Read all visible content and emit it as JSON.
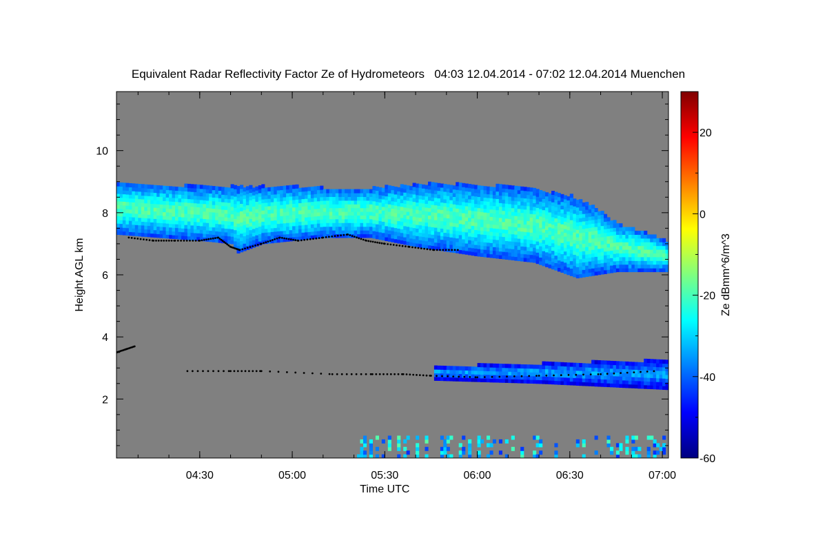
{
  "chart_data": {
    "type": "heatmap",
    "title": "Equivalent Radar Reflectivity Factor Ze of Hydrometeors   04:03 12.04.2014 - 07:02 12.04.2014 Muenchen",
    "xlabel": "Time UTC",
    "ylabel": "Height AGL km",
    "colorbar_label": "Ze dBmm^6/m^3",
    "x_ticks": [
      "04:30",
      "05:00",
      "05:30",
      "06:00",
      "06:30",
      "07:00"
    ],
    "x_tick_values_min": [
      270,
      300,
      330,
      360,
      390,
      420
    ],
    "xlim_min": [
      243,
      422
    ],
    "y_ticks": [
      2,
      4,
      6,
      8,
      10
    ],
    "ylim": [
      0.1,
      11.9
    ],
    "colorbar_ticks": [
      -60,
      -40,
      -20,
      0,
      20
    ],
    "colorbar_range": [
      -60,
      30
    ],
    "colors": {
      "background_no_signal": "#808080",
      "colormap": [
        "#00007f",
        "#0000ff",
        "#007fff",
        "#00ffff",
        "#7fff7f",
        "#ffff00",
        "#ff7f00",
        "#ff0000",
        "#7f0000"
      ],
      "cloud_base_marker": "#000000"
    },
    "layers": [
      {
        "name": "upper cloud",
        "top_km": [
          [
            243,
            8.9
          ],
          [
            270,
            8.8
          ],
          [
            300,
            8.8
          ],
          [
            320,
            8.7
          ],
          [
            345,
            8.9
          ],
          [
            370,
            8.8
          ],
          [
            390,
            8.5
          ],
          [
            398,
            8.1
          ],
          [
            405,
            7.6
          ],
          [
            415,
            7.3
          ],
          [
            422,
            7.0
          ]
        ],
        "base_km": [
          [
            243,
            7.3
          ],
          [
            270,
            7.1
          ],
          [
            280,
            7.0
          ],
          [
            282,
            6.7
          ],
          [
            290,
            7.0
          ],
          [
            310,
            7.2
          ],
          [
            325,
            7.2
          ],
          [
            340,
            6.9
          ],
          [
            360,
            6.6
          ],
          [
            378,
            6.4
          ],
          [
            392,
            5.9
          ],
          [
            405,
            6.1
          ],
          [
            422,
            6.1
          ]
        ],
        "ze_min_dbz": -42,
        "ze_max_dbz": -20
      },
      {
        "name": "mid-level layer",
        "top_km": [
          [
            346,
            3.0
          ],
          [
            380,
            3.1
          ],
          [
            422,
            3.2
          ]
        ],
        "base_km": [
          [
            346,
            2.6
          ],
          [
            380,
            2.5
          ],
          [
            422,
            2.3
          ]
        ],
        "ze_min_dbz": -50,
        "ze_max_dbz": -35
      },
      {
        "name": "low-level precipitation",
        "top_km": [
          [
            320,
            0.8
          ],
          [
            360,
            0.8
          ],
          [
            422,
            0.7
          ]
        ],
        "base_km": [
          [
            320,
            0.1
          ],
          [
            422,
            0.1
          ]
        ],
        "ze_min_dbz": -45,
        "ze_max_dbz": -18
      }
    ],
    "cloud_base_series": [
      {
        "x_min": [
          247,
          255,
          262,
          270,
          276,
          280,
          283,
          290,
          296,
          302,
          310,
          318,
          324,
          330,
          338,
          346,
          354
        ],
        "height_km": [
          7.2,
          7.1,
          7.1,
          7.1,
          7.2,
          6.9,
          6.8,
          7.0,
          7.2,
          7.1,
          7.2,
          7.3,
          7.1,
          7.0,
          6.9,
          6.8,
          6.8
        ]
      },
      {
        "x_min": [
          243,
          246,
          249
        ],
        "height_km": [
          3.5,
          3.6,
          3.7
        ]
      },
      {
        "x_min": [
          266,
          280,
          290,
          313,
          326,
          336,
          345,
          360,
          380,
          400,
          418
        ],
        "height_km": [
          2.9,
          2.9,
          2.9,
          2.8,
          2.8,
          2.8,
          2.75,
          2.7,
          2.75,
          2.8,
          2.9
        ]
      }
    ]
  }
}
